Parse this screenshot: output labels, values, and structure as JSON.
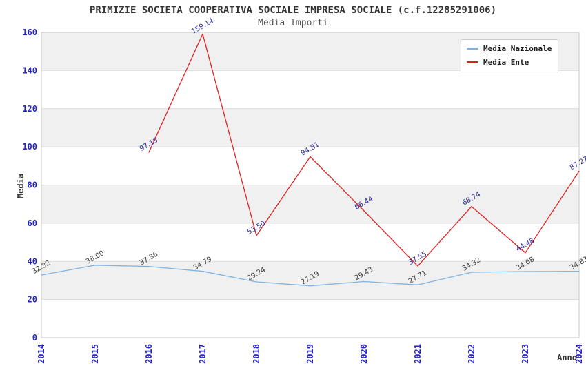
{
  "chart_data": {
    "type": "line",
    "title": "PRIMIZIE SOCIETA COOPERATIVA SOCIALE IMPRESA SOCIALE (c.f.12285291006)",
    "subtitle": "Media Importi",
    "xlabel": "Anno",
    "ylabel": "Media",
    "x": [
      2014,
      2015,
      2016,
      2017,
      2018,
      2019,
      2020,
      2021,
      2022,
      2023,
      2024
    ],
    "ylim": [
      0,
      160
    ],
    "ytick_step": 20,
    "grid": "horizontal-bands",
    "legend_position": "top-right",
    "series": [
      {
        "name": "Media Nazionale",
        "color": "#7db2e2",
        "label_color": "#3a3a3a",
        "values": [
          32.82,
          38.0,
          37.36,
          34.79,
          29.24,
          27.19,
          29.43,
          27.71,
          34.32,
          34.68,
          34.83
        ]
      },
      {
        "name": "Media Ente",
        "color": "#e02020",
        "label_color": "#2b2b9e",
        "values": [
          null,
          null,
          97.15,
          159.14,
          53.5,
          94.81,
          66.44,
          37.55,
          68.74,
          44.48,
          87.27
        ]
      }
    ],
    "colors": {
      "tick_label": "#2424cc",
      "band_fill": "#f0f0f0",
      "gridline": "#dcdcdc",
      "plot_border": "#c9c9c9",
      "title": "#333333",
      "subtitle": "#555555"
    }
  }
}
